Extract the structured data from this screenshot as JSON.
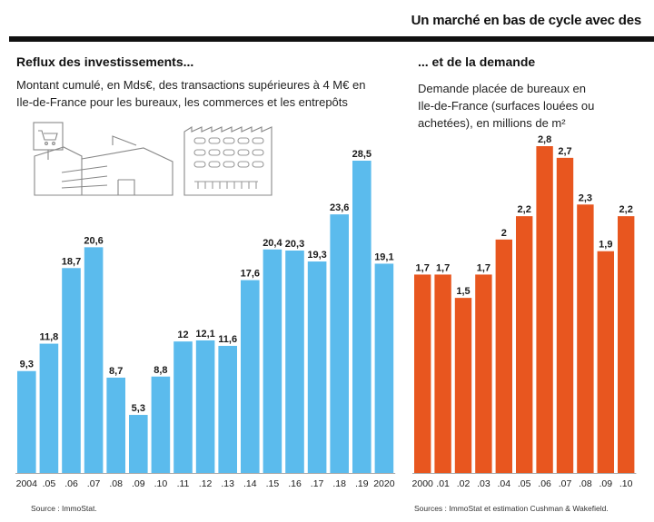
{
  "headline": "Un marché en bas de cycle avec des",
  "left": {
    "title": "Reflux des investissements...",
    "description": "Montant cumulé, en Mds€, des transactions supérieures à 4 M€ en Ile-de-France pour les bureaux, les commerces et les entrepôts",
    "source": "Source : ImmoStat.",
    "icons": [
      "shopping-cart-icon",
      "office-building-icon",
      "warehouse-icon"
    ]
  },
  "right": {
    "title": "... et de la demande",
    "description": "Demande placée de bureaux en Ile-de-France (surfaces louées ou achetées), en millions de m²",
    "source": "Sources : ImmoStat et estimation Cushman & Wakefield."
  },
  "colors": {
    "blue": "#5bbbed",
    "orange": "#e8561f"
  },
  "chart_data": [
    {
      "type": "bar",
      "categories": [
        "2004",
        ".05",
        ".06",
        ".07",
        ".08",
        ".09",
        ".10",
        ".11",
        ".12",
        ".13",
        ".14",
        ".15",
        ".16",
        ".17",
        ".18",
        ".19",
        "2020"
      ],
      "values": [
        9.3,
        11.8,
        18.7,
        20.6,
        8.7,
        5.3,
        8.8,
        12,
        12.1,
        11.6,
        17.6,
        20.4,
        20.3,
        19.3,
        23.6,
        28.5,
        19.1
      ],
      "value_labels": [
        "9,3",
        "11,8",
        "18,7",
        "20,6",
        "8,7",
        "5,3",
        "8,8",
        "12",
        "12,1",
        "11,6",
        "17,6",
        "20,4",
        "20,3",
        "19,3",
        "23,6",
        "28,5",
        "19,1"
      ],
      "title": "Reflux des investissements...",
      "ylabel": "Montant cumulé, en Mds€, des transactions supérieures à 4 M€ en Ile-de-France pour les bureaux, les commerces et les entrepôts",
      "ylim": [
        0,
        28.5
      ],
      "color": "#5bbbed",
      "grid": false
    },
    {
      "type": "bar",
      "categories": [
        "2000",
        ".01",
        ".02",
        ".03",
        ".04",
        ".05",
        ".06",
        ".07",
        ".08",
        ".09",
        ".10"
      ],
      "values": [
        1.7,
        1.7,
        1.5,
        1.7,
        2,
        2.2,
        2.8,
        2.7,
        2.3,
        1.9,
        2.2
      ],
      "value_labels": [
        "1,7",
        "1,7",
        "1,5",
        "1,7",
        "2",
        "2,2",
        "2,8",
        "2,7",
        "2,3",
        "1,9",
        "2,2"
      ],
      "title": "... et de la demande",
      "ylabel": "Demande placée de bureaux en Ile-de-France (surfaces louées ou achetées), en millions de m²",
      "ylim": [
        0,
        2.8
      ],
      "color": "#e8561f",
      "grid": false
    }
  ]
}
